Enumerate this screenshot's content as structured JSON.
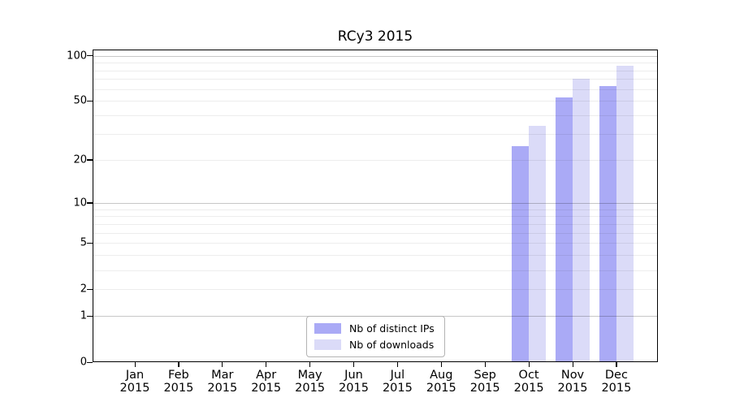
{
  "chart_data": {
    "type": "bar",
    "title": "RCy3 2015",
    "scale": "log1p",
    "ylim": [
      0,
      100
    ],
    "grid": "both",
    "legend_position": "lower center",
    "categories": [
      "Jan 2015",
      "Feb 2015",
      "Mar 2015",
      "Apr 2015",
      "May 2015",
      "Jun 2015",
      "Jul 2015",
      "Aug 2015",
      "Sep 2015",
      "Oct 2015",
      "Nov 2015",
      "Dec 2015"
    ],
    "series": [
      {
        "name": "Nb of distinct IPs",
        "color": "#aaaaf6",
        "values": [
          null,
          null,
          null,
          null,
          null,
          null,
          null,
          null,
          null,
          25,
          53,
          63
        ]
      },
      {
        "name": "Nb of downloads",
        "color": "#dbdbf8",
        "values": [
          null,
          null,
          null,
          null,
          null,
          null,
          null,
          null,
          null,
          34,
          70,
          86
        ]
      }
    ],
    "y_ticks": [
      0,
      1,
      2,
      5,
      10,
      20,
      50,
      100
    ],
    "grid_minor_values": [
      1,
      2,
      3,
      4,
      5,
      6,
      7,
      8,
      9,
      10,
      20,
      30,
      40,
      50,
      60,
      70,
      80,
      90,
      100
    ],
    "grid_major_values": [
      1,
      10,
      100
    ]
  }
}
